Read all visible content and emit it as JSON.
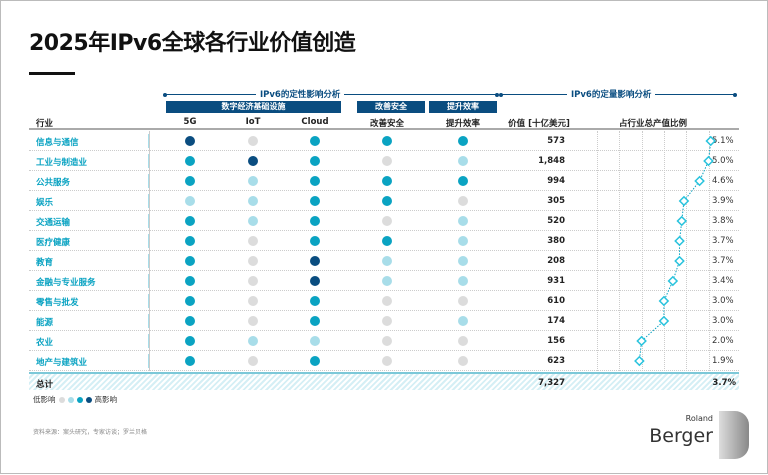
{
  "title": "2025年IPv6全球各行业价值创造",
  "qual_header": "IPv6的定性影响分析",
  "quant_header": "IPv6的定量影响分析",
  "groups": [
    "数字经济基础设施",
    "改善安全",
    "提升效率"
  ],
  "columns": {
    "industry": "行业",
    "g5": "5G",
    "iot": "IoT",
    "cloud": "Cloud",
    "security": "改善安全",
    "efficiency": "提升效率",
    "value": "价值 [十亿美元]",
    "share": "占行业总产值比例"
  },
  "colors": {
    "0": "#dcdcdc",
    "1": "#a8dde9",
    "2": "#0aa3c2",
    "3": "#0a4d80"
  },
  "rows": [
    {
      "name": "信息与通信",
      "impact": [
        3,
        0,
        2,
        2,
        2
      ],
      "value": "573",
      "share": "5.1%"
    },
    {
      "name": "工业与制造业",
      "impact": [
        2,
        3,
        2,
        0,
        1
      ],
      "value": "1,848",
      "share": "5.0%"
    },
    {
      "name": "公共服务",
      "impact": [
        2,
        1,
        2,
        2,
        2
      ],
      "value": "994",
      "share": "4.6%"
    },
    {
      "name": "娱乐",
      "impact": [
        1,
        1,
        2,
        2,
        0
      ],
      "value": "305",
      "share": "3.9%"
    },
    {
      "name": "交通运输",
      "impact": [
        2,
        1,
        2,
        0,
        1
      ],
      "value": "520",
      "share": "3.8%"
    },
    {
      "name": "医疗健康",
      "impact": [
        2,
        0,
        2,
        2,
        1
      ],
      "value": "380",
      "share": "3.7%"
    },
    {
      "name": "教育",
      "impact": [
        2,
        0,
        3,
        1,
        1
      ],
      "value": "208",
      "share": "3.7%"
    },
    {
      "name": "金融与专业服务",
      "impact": [
        2,
        0,
        3,
        1,
        1
      ],
      "value": "931",
      "share": "3.4%"
    },
    {
      "name": "零售与批发",
      "impact": [
        2,
        0,
        2,
        0,
        0
      ],
      "value": "610",
      "share": "3.0%"
    },
    {
      "name": "能源",
      "impact": [
        2,
        0,
        2,
        0,
        1
      ],
      "value": "174",
      "share": "3.0%"
    },
    {
      "name": "农业",
      "impact": [
        2,
        1,
        1,
        0,
        0
      ],
      "value": "156",
      "share": "2.0%"
    },
    {
      "name": "地产与建筑业",
      "impact": [
        2,
        0,
        2,
        0,
        0
      ],
      "value": "623",
      "share": "1.9%"
    }
  ],
  "total": {
    "label": "总计",
    "value": "7,327",
    "share": "3.7%"
  },
  "legend": {
    "low": "低影响",
    "high": "高影响"
  },
  "source": "资料来源：案头研究，专家访谈；罗兰贝格",
  "logo": "Roland Berger",
  "chart_data": {
    "type": "line",
    "title": "占行业总产值比例",
    "categories": [
      "信息与通信",
      "工业与制造业",
      "公共服务",
      "娱乐",
      "交通运输",
      "医疗健康",
      "教育",
      "金融与专业服务",
      "零售与批发",
      "能源",
      "农业",
      "地产与建筑业"
    ],
    "values": [
      5.1,
      5.0,
      4.6,
      3.9,
      3.8,
      3.7,
      3.7,
      3.4,
      3.0,
      3.0,
      2.0,
      1.9
    ],
    "xlim": [
      0,
      5
    ],
    "unit": "%",
    "grid": true
  }
}
